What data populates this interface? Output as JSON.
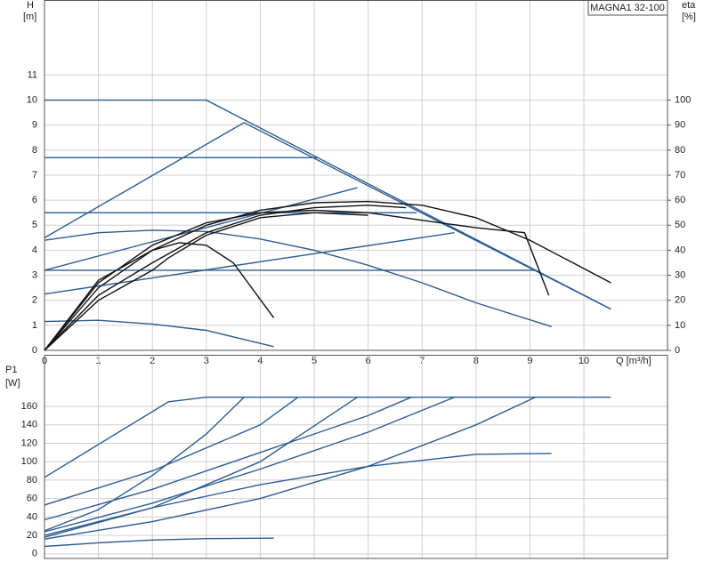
{
  "chart_data": [
    {
      "type": "line",
      "y_label": "H",
      "y_unit": "[m]",
      "y2_label": "eta",
      "y2_unit": "[%]",
      "x_label": "Q [m³/h]",
      "annotation": "MAGNA1 32-100",
      "xlim": [
        0,
        11.55
      ],
      "xticks": [
        0,
        1,
        2,
        3,
        4,
        5,
        6,
        7,
        8,
        9,
        10
      ],
      "ylim": [
        0,
        14
      ],
      "yticks": [
        0,
        1,
        2,
        3,
        4,
        5,
        6,
        7,
        8,
        9,
        10,
        11
      ],
      "y2lim": [
        0,
        140
      ],
      "y2ticks": [
        0,
        10,
        20,
        30,
        40,
        50,
        60,
        70,
        80,
        90,
        100
      ],
      "grid": true,
      "series": [
        {
          "color": "#2b5c8f",
          "x": [
            0,
            3,
            10.5
          ],
          "values": [
            10,
            10,
            1.65
          ]
        },
        {
          "color": "#2b5c8f",
          "x": [
            0,
            5.07
          ],
          "values": [
            7.7,
            7.7
          ]
        },
        {
          "color": "#2b5c8f",
          "x": [
            0,
            6.9
          ],
          "values": [
            5.5,
            5.5
          ]
        },
        {
          "color": "#2b5c8f",
          "x": [
            0,
            9.1
          ],
          "values": [
            3.2,
            3.2
          ]
        },
        {
          "color": "#2b5c8f",
          "x": [
            0,
            3.7,
            10.5
          ],
          "values": [
            4.5,
            9.1,
            1.65
          ]
        },
        {
          "color": "#2b5c8f",
          "x": [
            0,
            5.8
          ],
          "values": [
            3.2,
            6.5
          ]
        },
        {
          "color": "#2b5c8f",
          "x": [
            0,
            7.6
          ],
          "values": [
            2.25,
            4.7
          ]
        },
        {
          "color": "#2b5c8f",
          "x": [
            0,
            1,
            2,
            3,
            4,
            5,
            6,
            7,
            8,
            9.4
          ],
          "values": [
            4.4,
            4.7,
            4.8,
            4.75,
            4.45,
            4.0,
            3.4,
            2.7,
            1.9,
            0.95
          ]
        },
        {
          "color": "#2b5c8f",
          "x": [
            0,
            1,
            2,
            3,
            4.25
          ],
          "values": [
            1.15,
            1.2,
            1.05,
            0.8,
            0.15
          ]
        },
        {
          "color": "#111111",
          "axis": "y2",
          "x": [
            0,
            1,
            2,
            3,
            4,
            5,
            6,
            7,
            8,
            9,
            10.5
          ],
          "values": [
            0,
            25,
            40,
            50,
            56,
            59,
            59.5,
            58,
            53,
            44,
            27
          ]
        },
        {
          "color": "#111111",
          "axis": "y2",
          "x": [
            0,
            1,
            2,
            3,
            4,
            5,
            6,
            7,
            8,
            8.9,
            9.35
          ],
          "values": [
            0,
            27,
            42,
            51,
            55,
            56,
            55,
            52,
            49,
            47,
            22
          ]
        },
        {
          "color": "#111111",
          "axis": "y2",
          "x": [
            0,
            1,
            2,
            2.5,
            3,
            3.5,
            4.25
          ],
          "values": [
            0,
            28,
            40,
            43,
            42,
            35,
            13
          ]
        },
        {
          "color": "#111111",
          "axis": "y2",
          "x": [
            0,
            1,
            2,
            3,
            4,
            5,
            6,
            6.7
          ],
          "values": [
            0,
            22,
            35,
            47,
            54,
            57,
            58,
            57
          ]
        },
        {
          "color": "#111111",
          "axis": "y2",
          "x": [
            0,
            1,
            2,
            2.3,
            3,
            4,
            5,
            6
          ],
          "values": [
            0,
            20,
            32,
            37,
            46,
            53,
            55,
            54
          ]
        }
      ]
    },
    {
      "type": "line",
      "y_label": "P1",
      "y_unit": "[W]",
      "xlim": [
        0,
        11.55
      ],
      "xticks": [
        0,
        1,
        2,
        3,
        4,
        5,
        6,
        7,
        8,
        9,
        10
      ],
      "ylim": [
        -5,
        216
      ],
      "yticks": [
        0,
        20,
        40,
        60,
        80,
        100,
        120,
        140,
        160
      ],
      "grid": true,
      "series": [
        {
          "color": "#2b5c8f",
          "x": [
            0,
            2.3,
            3,
            10.5
          ],
          "values": [
            83,
            165,
            170,
            170
          ]
        },
        {
          "color": "#2b5c8f",
          "x": [
            0,
            1,
            2,
            3,
            3.7
          ],
          "values": [
            25,
            48,
            85,
            130,
            170
          ]
        },
        {
          "color": "#2b5c8f",
          "x": [
            0,
            2,
            4,
            4.7
          ],
          "values": [
            53,
            90,
            140,
            170
          ]
        },
        {
          "color": "#2b5c8f",
          "x": [
            0,
            2,
            4,
            5.8
          ],
          "values": [
            18,
            50,
            100,
            170
          ]
        },
        {
          "color": "#2b5c8f",
          "x": [
            0,
            2,
            4,
            6,
            6.8
          ],
          "values": [
            37,
            70,
            110,
            150,
            170
          ]
        },
        {
          "color": "#2b5c8f",
          "x": [
            0,
            2,
            4,
            6,
            7.6
          ],
          "values": [
            24,
            55,
            92,
            132,
            170
          ]
        },
        {
          "color": "#2b5c8f",
          "x": [
            0,
            2,
            4,
            6,
            8,
            9.1
          ],
          "values": [
            16,
            35,
            60,
            95,
            140,
            170
          ]
        },
        {
          "color": "#2b5c8f",
          "x": [
            0,
            2,
            4,
            6,
            8,
            9.4
          ],
          "values": [
            20,
            50,
            75,
            95,
            108,
            109
          ]
        },
        {
          "color": "#2b5c8f",
          "x": [
            0,
            1,
            2,
            3,
            4.25
          ],
          "values": [
            8,
            12,
            15,
            16.5,
            17
          ]
        }
      ]
    }
  ]
}
